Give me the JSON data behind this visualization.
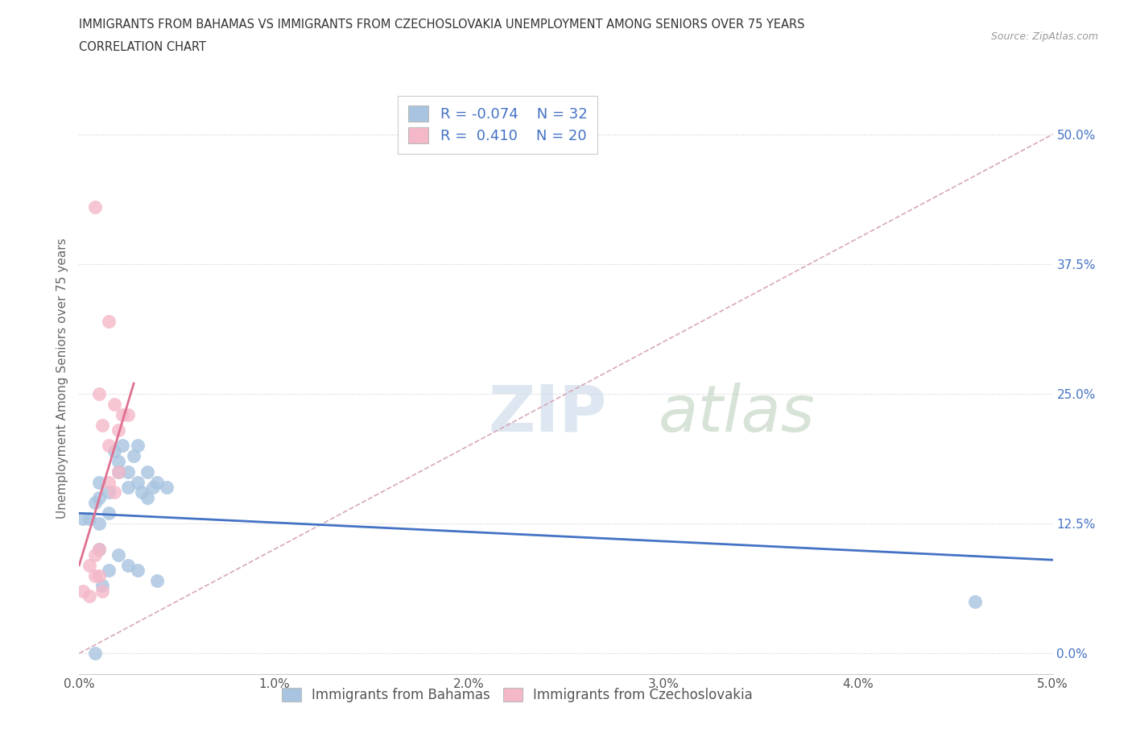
{
  "title_line1": "IMMIGRANTS FROM BAHAMAS VS IMMIGRANTS FROM CZECHOSLOVAKIA UNEMPLOYMENT AMONG SENIORS OVER 75 YEARS",
  "title_line2": "CORRELATION CHART",
  "source_text": "Source: ZipAtlas.com",
  "ylabel": "Unemployment Among Seniors over 75 years",
  "xlim": [
    0.0,
    0.05
  ],
  "ylim": [
    -0.02,
    0.55
  ],
  "yticks": [
    0.0,
    0.125,
    0.25,
    0.375,
    0.5
  ],
  "ytick_labels": [
    "0.0%",
    "12.5%",
    "25.0%",
    "37.5%",
    "50.0%"
  ],
  "xticks": [
    0.0,
    0.01,
    0.02,
    0.03,
    0.04,
    0.05
  ],
  "xtick_labels": [
    "0.0%",
    "1.0%",
    "2.0%",
    "3.0%",
    "4.0%",
    "5.0%"
  ],
  "legend_labels": [
    "Immigrants from Bahamas",
    "Immigrants from Czechoslovakia"
  ],
  "r_bahamas": -0.074,
  "n_bahamas": 32,
  "r_czech": 0.41,
  "n_czech": 20,
  "color_bahamas": "#a8c4e0",
  "color_czech": "#f4b8c8",
  "line_color_bahamas": "#4472c4",
  "line_color_czech": "#e07090",
  "diagonal_color": "#d8a8b8",
  "watermark_zip": "ZIP",
  "watermark_atlas": "atlas",
  "bahamas_x": [
    0.0005,
    0.0008,
    0.001,
    0.001,
    0.001,
    0.001,
    0.0015,
    0.0015,
    0.0018,
    0.002,
    0.002,
    0.0022,
    0.0025,
    0.0025,
    0.0028,
    0.003,
    0.003,
    0.0032,
    0.0035,
    0.0035,
    0.0038,
    0.004,
    0.004,
    0.0045,
    0.0008,
    0.0012,
    0.0015,
    0.002,
    0.0025,
    0.003,
    0.0002,
    0.046
  ],
  "bahamas_y": [
    0.13,
    0.145,
    0.15,
    0.125,
    0.1,
    0.165,
    0.155,
    0.135,
    0.195,
    0.185,
    0.175,
    0.2,
    0.16,
    0.175,
    0.19,
    0.2,
    0.165,
    0.155,
    0.175,
    0.15,
    0.16,
    0.165,
    0.07,
    0.16,
    0.0,
    0.065,
    0.08,
    0.095,
    0.085,
    0.08,
    0.13,
    0.05
  ],
  "czech_x": [
    0.0002,
    0.0005,
    0.0008,
    0.0008,
    0.001,
    0.001,
    0.0012,
    0.0015,
    0.0015,
    0.0018,
    0.002,
    0.002,
    0.0022,
    0.0025,
    0.0008,
    0.0015,
    0.001,
    0.0018,
    0.0005,
    0.0012
  ],
  "czech_y": [
    0.06,
    0.085,
    0.095,
    0.075,
    0.1,
    0.075,
    0.22,
    0.2,
    0.165,
    0.155,
    0.215,
    0.175,
    0.23,
    0.23,
    0.43,
    0.32,
    0.25,
    0.24,
    0.055,
    0.06
  ],
  "bahamas_trendline_x": [
    0.0,
    0.05
  ],
  "bahamas_trendline_y": [
    0.135,
    0.09
  ],
  "czech_trendline_x": [
    0.0,
    0.0028
  ],
  "czech_trendline_y": [
    0.085,
    0.26
  ]
}
